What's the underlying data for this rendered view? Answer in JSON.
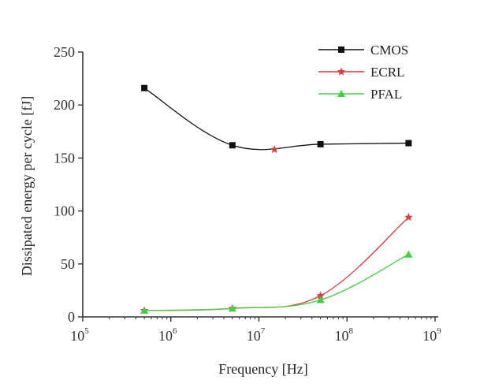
{
  "chart_data": {
    "type": "line",
    "title": "",
    "xlabel": "Frequency [Hz]",
    "ylabel": "Dissipated energy per cycle [fJ]",
    "xscale": "log",
    "xlim_exp": [
      5,
      9
    ],
    "ylim": [
      0,
      250
    ],
    "xticks": [
      {
        "base": "10",
        "exp": "5",
        "value": 100000
      },
      {
        "base": "10",
        "exp": "6",
        "value": 1000000
      },
      {
        "base": "10",
        "exp": "7",
        "value": 10000000
      },
      {
        "base": "10",
        "exp": "8",
        "value": 100000000
      },
      {
        "base": "10",
        "exp": "9",
        "value": 1000000000
      }
    ],
    "yticks": [
      "0",
      "50",
      "100",
      "150",
      "200",
      "250"
    ],
    "legend_position": "top-right",
    "series": [
      {
        "name": "CMOS",
        "color": "#111111",
        "marker": "square",
        "x": [
          500000,
          5000000,
          50000000,
          500000000
        ],
        "y": [
          216,
          162,
          163,
          164
        ]
      },
      {
        "name": "ECRL",
        "color": "#e0393e",
        "marker": "star",
        "x": [
          500000,
          5000000,
          50000000,
          500000000
        ],
        "y": [
          6,
          8,
          20,
          94
        ]
      },
      {
        "name": "PFAL",
        "color": "#3fd13f",
        "marker": "triangle",
        "x": [
          500000,
          5000000,
          50000000,
          500000000
        ],
        "y": [
          6,
          8,
          16,
          59
        ]
      }
    ],
    "annotations": [
      {
        "type": "point",
        "marker": "star",
        "color": "#e0393e",
        "x": 15000000,
        "y": 158
      }
    ]
  }
}
